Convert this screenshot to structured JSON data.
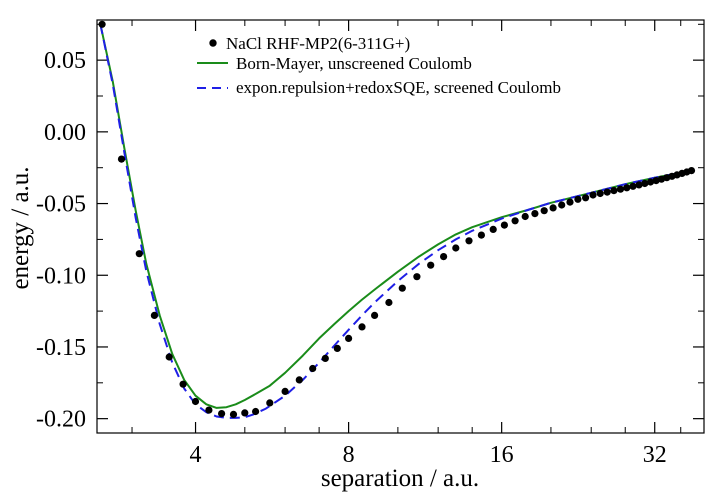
{
  "chart_data": {
    "type": "line",
    "xlabel": "separation / a.u.",
    "ylabel": "energy / a.u.",
    "x_scale": "log",
    "xlim": [
      2.56,
      40
    ],
    "ylim": [
      -0.21,
      0.078
    ],
    "xticks": [
      4,
      8,
      16,
      32
    ],
    "xtick_labels": [
      "4",
      "8",
      "16",
      "32"
    ],
    "yticks": [
      -0.2,
      -0.15,
      -0.1,
      -0.05,
      0.0,
      0.05
    ],
    "ytick_labels": [
      "-0.20",
      "-0.15",
      "-0.10",
      "-0.05",
      "0.00",
      "0.05"
    ],
    "grid": false,
    "legend_position": "top-right",
    "colors": {
      "points": "#000000",
      "born_mayer": "#1a8c1a",
      "expon": "#1f1fe6"
    },
    "series": [
      {
        "name": "NaCl RHF-MP2(6-311G+)",
        "style": "points",
        "x": [
          2.62,
          2.86,
          3.1,
          3.32,
          3.55,
          3.78,
          4.0,
          4.25,
          4.5,
          4.75,
          5.0,
          5.25,
          5.6,
          6.0,
          6.4,
          6.8,
          7.2,
          7.6,
          8.0,
          8.5,
          9.0,
          9.6,
          10.2,
          10.9,
          11.6,
          12.3,
          13.0,
          13.8,
          14.6,
          15.4,
          16.2,
          17.0,
          17.8,
          18.6,
          19.4,
          20.2,
          21.0,
          21.8,
          22.6,
          23.4,
          24.2,
          25.0,
          25.8,
          26.6,
          27.4,
          28.2,
          29.0,
          29.8,
          30.6,
          31.4,
          32.2,
          33.0,
          33.8,
          34.6,
          35.4,
          36.2,
          37.0,
          37.8
        ],
        "y": [
          0.075,
          -0.019,
          -0.085,
          -0.128,
          -0.157,
          -0.176,
          -0.188,
          -0.194,
          -0.1965,
          -0.197,
          -0.196,
          -0.195,
          -0.189,
          -0.181,
          -0.173,
          -0.165,
          -0.158,
          -0.151,
          -0.144,
          -0.136,
          -0.128,
          -0.119,
          -0.109,
          -0.101,
          -0.093,
          -0.087,
          -0.081,
          -0.076,
          -0.072,
          -0.068,
          -0.065,
          -0.062,
          -0.059,
          -0.057,
          -0.055,
          -0.053,
          -0.051,
          -0.049,
          -0.047,
          -0.046,
          -0.044,
          -0.043,
          -0.042,
          -0.041,
          -0.04,
          -0.039,
          -0.038,
          -0.037,
          -0.036,
          -0.035,
          -0.034,
          -0.033,
          -0.032,
          -0.031,
          -0.03,
          -0.029,
          -0.028,
          -0.027
        ]
      },
      {
        "name": "Born-Mayer, unscreened Coulomb",
        "style": "solid",
        "x": [
          2.6,
          2.75,
          2.9,
          3.05,
          3.2,
          3.4,
          3.6,
          3.8,
          4.0,
          4.2,
          4.4,
          4.6,
          4.8,
          5.0,
          5.3,
          5.6,
          6.0,
          6.5,
          7.0,
          7.5,
          8.0,
          8.5,
          9.0,
          10.0,
          11.0,
          12.0,
          13.0,
          14.0,
          16.0,
          18.0,
          20.0,
          24.0,
          28.0,
          32.0,
          36.0,
          38.0
        ],
        "y": [
          0.075,
          0.035,
          -0.012,
          -0.055,
          -0.092,
          -0.128,
          -0.155,
          -0.173,
          -0.184,
          -0.19,
          -0.1925,
          -0.192,
          -0.19,
          -0.187,
          -0.182,
          -0.177,
          -0.168,
          -0.156,
          -0.144,
          -0.134,
          -0.125,
          -0.117,
          -0.11,
          -0.0975,
          -0.087,
          -0.0785,
          -0.0715,
          -0.0665,
          -0.0595,
          -0.0545,
          -0.0495,
          -0.0425,
          -0.0365,
          -0.032,
          -0.0285,
          -0.0272
        ]
      },
      {
        "name": "expon.repulsion+redoxSQE, screened Coulomb",
        "style": "dashed",
        "x": [
          2.6,
          2.75,
          2.9,
          3.05,
          3.2,
          3.4,
          3.6,
          3.8,
          4.0,
          4.2,
          4.4,
          4.6,
          4.8,
          5.0,
          5.2,
          5.5,
          6.0,
          6.5,
          7.0,
          7.5,
          8.0,
          8.5,
          9.0,
          10.0,
          11.0,
          12.0,
          13.0,
          14.0,
          16.0,
          18.0,
          20.0,
          24.0,
          28.0,
          32.0,
          36.0,
          38.0
        ],
        "y": [
          0.075,
          0.033,
          -0.015,
          -0.06,
          -0.097,
          -0.134,
          -0.161,
          -0.179,
          -0.19,
          -0.1955,
          -0.1985,
          -0.1995,
          -0.1995,
          -0.199,
          -0.197,
          -0.193,
          -0.184,
          -0.173,
          -0.161,
          -0.149,
          -0.138,
          -0.128,
          -0.119,
          -0.104,
          -0.092,
          -0.0825,
          -0.075,
          -0.069,
          -0.0605,
          -0.0545,
          -0.0495,
          -0.0425,
          -0.0365,
          -0.032,
          -0.0285,
          -0.0272
        ]
      }
    ]
  }
}
